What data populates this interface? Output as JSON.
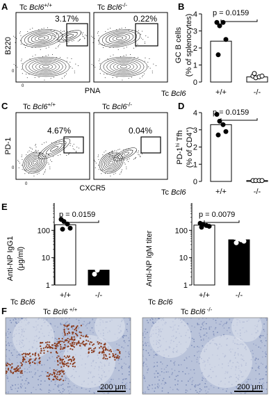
{
  "panels": {
    "A": {
      "letter": "A",
      "left_title_prefix": "Tc ",
      "left_title_gene": "Bcl6",
      "left_title_sup": "+/+",
      "right_title_prefix": "Tc ",
      "right_title_gene": "Bcl6",
      "right_title_sup": "-/-",
      "left_pct": "3.17%",
      "right_pct": "0.22%",
      "ylabel": "B220",
      "xlabel": "PNA",
      "zero": "0"
    },
    "B": {
      "letter": "B",
      "pvalue": "p = 0.0159",
      "ylabel_line1": "GC B cells",
      "ylabel_line2": "(% of splenocytes)",
      "genotype_prefix": "Tc ",
      "genotype_gene": "Bcl6"
    },
    "C": {
      "letter": "C",
      "left_title_prefix": "Tc ",
      "left_title_gene": "Bcl6",
      "left_title_sup": "+/+",
      "right_title_prefix": "Tc ",
      "right_title_gene": "Bcl6",
      "right_title_sup": "-/-",
      "left_pct": "4.67%",
      "right_pct": "0.04%",
      "ylabel": "PD-1",
      "xlabel": "CXCR5",
      "zero": "0"
    },
    "D": {
      "letter": "D",
      "pvalue": "p = 0.0159",
      "ylabel_pre": "PD-1",
      "ylabel_sup": "hi",
      "ylabel_post": " Tfh",
      "ylabel_line2_pre": "(% of CD4",
      "ylabel_line2_sup": "+",
      "ylabel_line2_post": ")",
      "genotype_prefix": "Tc ",
      "genotype_gene": "Bcl6"
    },
    "E": {
      "letter": "E",
      "left_pvalue": "p = 0.0159",
      "right_pvalue": "p = 0.0079",
      "left_ylabel_line1": "Anti-NP IgG1",
      "left_ylabel_line2": "(μg/ml)",
      "right_ylabel": "Anti-NP IgM titer",
      "genotype_prefix": "Tc ",
      "genotype_gene": "Bcl6"
    },
    "F": {
      "letter": "F",
      "left_title_prefix": "Tc ",
      "left_title_gene": "Bcl6",
      "left_title_sup": " +/+",
      "right_title_prefix": "Tc ",
      "right_title_gene": "Bcl6",
      "right_title_sup": " -/-",
      "scalebar": "200 μm",
      "tissue_bg": "#b9c3da",
      "stain_color": "#8a3a1c"
    }
  },
  "chart_data": [
    {
      "type": "scatter",
      "panel": "B",
      "categories": [
        "+/+",
        "-/-"
      ],
      "bar_values": [
        2.4,
        0.3
      ],
      "points": [
        [
          3.5,
          3.3,
          3.5,
          2.5,
          1.6
        ],
        [
          0.35,
          0.25,
          0.3,
          0.35,
          0.5
        ]
      ],
      "ylim": [
        0,
        4
      ],
      "yticks": [
        "0",
        "1",
        "2",
        "3",
        "4"
      ]
    },
    {
      "type": "scatter",
      "panel": "D",
      "categories": [
        "+/+",
        "-/-"
      ],
      "bar_values": [
        3.3,
        0.05
      ],
      "points": [
        [
          3.9,
          3.5,
          3.3,
          2.9,
          2.7
        ],
        [
          0.05,
          0.05,
          0.05,
          0.05
        ]
      ],
      "ylim": [
        0,
        4
      ],
      "yticks": [
        "0",
        "1",
        "2",
        "3",
        "4"
      ]
    },
    {
      "type": "scatter",
      "panel": "E-left",
      "scale": "log",
      "categories": [
        "+/+",
        "-/-"
      ],
      "bar_values": [
        160,
        3.5
      ],
      "points": [
        [
          250,
          210,
          170,
          120,
          110
        ],
        [
          2.5,
          3.5,
          5.5,
          9
        ]
      ],
      "ylim": [
        1,
        1000
      ],
      "yticks": [
        "1",
        "10",
        "100"
      ]
    },
    {
      "type": "scatter",
      "panel": "E-right",
      "scale": "log",
      "categories": [
        "+/+",
        "-/-"
      ],
      "bar_values": [
        155,
        45
      ],
      "points": [
        [
          180,
          165,
          150,
          140,
          130
        ],
        [
          55,
          48,
          45,
          40,
          35
        ]
      ],
      "ylim": [
        1,
        1000
      ],
      "yticks": [
        "1",
        "10",
        "100"
      ]
    }
  ]
}
